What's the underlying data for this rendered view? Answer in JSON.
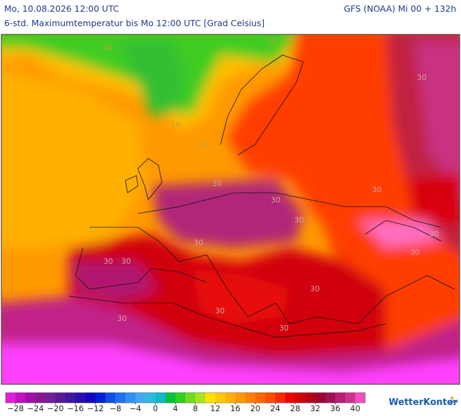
{
  "header": {
    "datetime": "Mo, 10.08.2026 12:00 UTC",
    "model": "GFS (NOAA) Mi 00 + 132h",
    "subtitle": "6-std. Maximumtemperatur bis Mo 12:00 UTC [Grad Celsius]"
  },
  "map": {
    "contour_labels": [
      "10",
      "10",
      "10",
      "10",
      "30",
      "30",
      "30",
      "30",
      "30",
      "30",
      "30",
      "30",
      "30",
      "30",
      "30",
      "30",
      "30",
      "30"
    ]
  },
  "colorbar": {
    "min": -30,
    "max": 42,
    "colors": [
      "#e020d8",
      "#c010c0",
      "#a010a8",
      "#881890",
      "#702098",
      "#581c98",
      "#4018a0",
      "#2810b0",
      "#1008c0",
      "#0020d8",
      "#1050e8",
      "#2070f0",
      "#3090f0",
      "#40a8f0",
      "#30b8e0",
      "#10b8c8",
      "#00c040",
      "#30d020",
      "#70dc20",
      "#a8e420",
      "#ffe000",
      "#ffc800",
      "#ffb000",
      "#ff9800",
      "#ff8000",
      "#ff6800",
      "#ff4c00",
      "#ff2800",
      "#f00000",
      "#d40008",
      "#b80018",
      "#a00030",
      "#a01050",
      "#b82070",
      "#d03090",
      "#f050c0"
    ],
    "ticks": [
      {
        "value": -28,
        "label": "−28"
      },
      {
        "value": -24,
        "label": "−24"
      },
      {
        "value": -20,
        "label": "−20"
      },
      {
        "value": -16,
        "label": "−16"
      },
      {
        "value": -12,
        "label": "−12"
      },
      {
        "value": -8,
        "label": "−8"
      },
      {
        "value": -4,
        "label": "−4"
      },
      0,
      4,
      8,
      12,
      16,
      20,
      24,
      28,
      32,
      36,
      40
    ]
  },
  "logo": "WetterKontor"
}
